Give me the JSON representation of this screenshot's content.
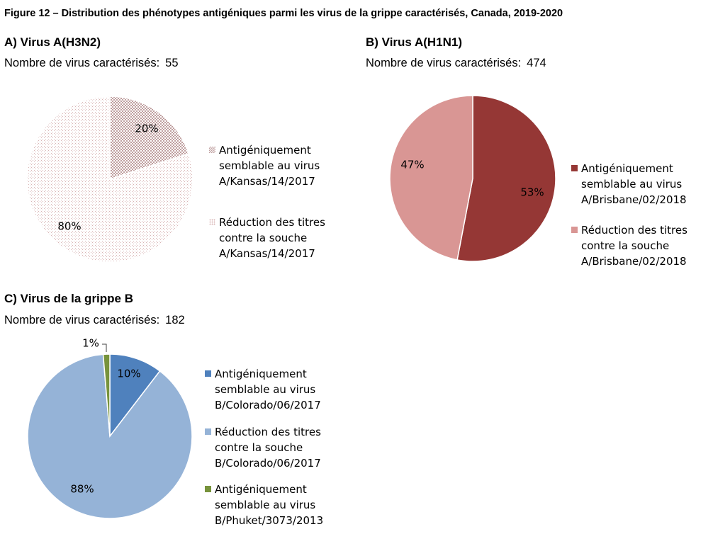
{
  "figure_title": "Figure 12 – Distribution des phénotypes antigéniques parmi les virus de la grippe caractérisés, Canada, 2019-2020",
  "colors": {
    "h3n2_similar": "#c0a0a0",
    "h3n2_reduced": "#e6cccc",
    "h1n1_similar": "#953735",
    "h1n1_reduced": "#d99694",
    "b_colorado_similar": "#4f81bd",
    "b_colorado_reduced": "#95b3d7",
    "b_phuket_similar": "#77933c"
  },
  "chart_data": [
    {
      "type": "pie",
      "title": "A) Virus A(H3N2)",
      "count_label": "Nombre de virus caractérisés:",
      "count_value": "55",
      "start_angle_deg": 0,
      "slices": [
        {
          "value": 20,
          "label": "20%",
          "legend": [
            "Antigéniquement",
            "semblable au virus",
            "A/Kansas/14/2017"
          ],
          "color": "#c0a0a0",
          "pattern": "dense"
        },
        {
          "value": 80,
          "label": "80%",
          "legend": [
            "Réduction des titres",
            "contre la souche",
            "A/Kansas/14/2017"
          ],
          "color": "#e6cccc",
          "pattern": "sparse"
        }
      ]
    },
    {
      "type": "pie",
      "title": "B) Virus A(H1N1)",
      "count_label": "Nombre de virus caractérisés:",
      "count_value": "474",
      "start_angle_deg": 0,
      "slices": [
        {
          "value": 53,
          "label": "53%",
          "legend": [
            "Antigéniquement",
            "semblable au virus",
            "A/Brisbane/02/2018"
          ],
          "color": "#953735"
        },
        {
          "value": 47,
          "label": "47%",
          "legend": [
            "Réduction des titres",
            "contre la souche",
            "A/Brisbane/02/2018"
          ],
          "color": "#d99694"
        }
      ]
    },
    {
      "type": "pie",
      "title": "C) Virus de la grippe B",
      "count_label": "Nombre de virus caractérisés:",
      "count_value": "182",
      "start_angle_deg": 0,
      "slices": [
        {
          "value": 10.4,
          "label": "10%",
          "legend": [
            "Antigéniquement",
            "semblable au virus",
            "B/Colorado/06/2017"
          ],
          "color": "#4f81bd"
        },
        {
          "value": 88.3,
          "label": "88%",
          "legend": [
            "Réduction des titres",
            "contre la souche",
            "B/Colorado/06/2017"
          ],
          "color": "#95b3d7"
        },
        {
          "value": 1.3,
          "label": "1%",
          "legend": [
            "Antigéniquement",
            "semblable au virus",
            "B/Phuket/3073/2013"
          ],
          "color": "#77933c"
        }
      ]
    }
  ]
}
